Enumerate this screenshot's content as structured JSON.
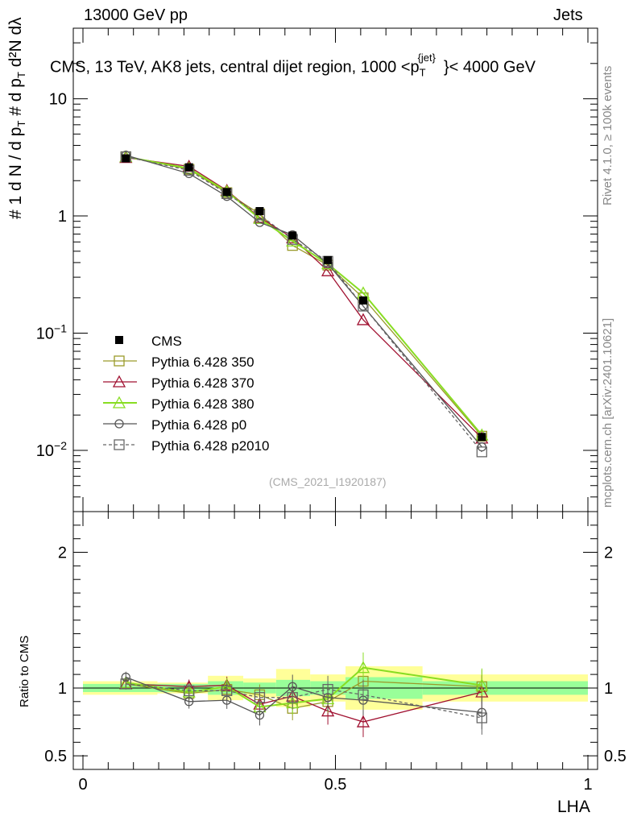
{
  "header": {
    "left": "13000 GeV pp",
    "right": "Jets",
    "title_main": "CMS, 13 TeV, AK8 jets, central dijet region, 1000 <",
    "title_var": "p",
    "title_sup": "{jet}",
    "title_sub": "T",
    "title_end": "}< 4000 GeV"
  },
  "side_labels": {
    "rivet": "Rivet 4.1.0, ≥ 100k events",
    "mcplots": "mcplots.cern.ch [arXiv:2401.10621]"
  },
  "watermark": "(CMS_2021_I1920187)",
  "y_axis_label": {
    "hash": "#",
    "one": "1",
    "dN": "d N / d p",
    "hash2": "#",
    "dp": "d p",
    "d2N": "d²N",
    "dlambda": "dλ",
    "sub": "T"
  },
  "ratio_ylabel": "Ratio to CMS",
  "xlabel": "LHA",
  "main_ticks": {
    "y": [
      {
        "base": "10",
        "exp": "−2",
        "value": 0.01
      },
      {
        "base": "10",
        "exp": "−1",
        "value": 0.1
      },
      {
        "base": "1",
        "exp": "",
        "value": 1
      },
      {
        "base": "10",
        "exp": "",
        "value": 10
      }
    ]
  },
  "ratio_ticks": {
    "y": [
      "0.5",
      "1",
      "2"
    ],
    "y_values": [
      0.5,
      1,
      2
    ]
  },
  "x_ticks": {
    "labels": [
      "0",
      "0.5",
      "1"
    ],
    "values": [
      0,
      0.5,
      1
    ]
  },
  "chart_data": {
    "type": "line",
    "xlabel": "LHA",
    "ylabel": "1/N dN/dp_T dp_T dλ",
    "xlim": [
      0,
      1
    ],
    "ylim": [
      0.003,
      40
    ],
    "yscale": "log",
    "ratio_ylim": [
      0.4,
      2.3
    ],
    "legend_position": "middle-left",
    "x": [
      0.085,
      0.21,
      0.285,
      0.35,
      0.415,
      0.485,
      0.555,
      0.79
    ],
    "data": {
      "name": "CMS",
      "values": [
        3.1,
        2.6,
        1.6,
        1.1,
        0.68,
        0.42,
        0.19,
        0.013
      ],
      "ratio_band_yellow": [
        0.05,
        0.04,
        0.09,
        0.07,
        0.14,
        0.1,
        0.16,
        0.1
      ],
      "ratio_band_green": [
        0.03,
        0.03,
        0.05,
        0.04,
        0.06,
        0.05,
        0.08,
        0.05
      ]
    },
    "series": [
      {
        "name": "Pythia 6.428 350",
        "color": "#9a9a2a",
        "marker": "square",
        "dash": false,
        "values": [
          3.2,
          2.5,
          1.58,
          1.04,
          0.56,
          0.38,
          0.2,
          0.0132
        ],
        "ratio": [
          1.03,
          0.96,
          0.99,
          0.95,
          0.85,
          0.9,
          1.05,
          1.01
        ]
      },
      {
        "name": "Pythia 6.428 370",
        "color": "#a01030",
        "marker": "triangle",
        "dash": false,
        "values": [
          3.15,
          2.65,
          1.65,
          0.97,
          0.65,
          0.34,
          0.13,
          0.0127
        ],
        "ratio": [
          1.03,
          1.01,
          1.02,
          0.88,
          0.94,
          0.83,
          0.75,
          0.97
        ]
      },
      {
        "name": "Pythia 6.428 380",
        "color": "#88dd22",
        "marker": "triangle",
        "dash": false,
        "values": [
          3.2,
          2.55,
          1.62,
          0.95,
          0.61,
          0.39,
          0.22,
          0.0135
        ],
        "ratio": [
          1.04,
          0.97,
          1.01,
          0.86,
          0.89,
          0.92,
          1.15,
          1.02
        ]
      },
      {
        "name": "Pythia 6.428 p0",
        "color": "#555555",
        "marker": "circle",
        "dash": false,
        "values": [
          3.3,
          2.3,
          1.47,
          0.88,
          0.69,
          0.39,
          0.17,
          0.0107
        ],
        "ratio": [
          1.08,
          0.9,
          0.91,
          0.8,
          1.01,
          0.93,
          0.91,
          0.82
        ]
      },
      {
        "name": "Pythia 6.428 p2010",
        "color": "#666666",
        "marker": "square",
        "dash": true,
        "values": [
          3.2,
          2.45,
          1.55,
          1.02,
          0.63,
          0.41,
          0.17,
          0.0097
        ],
        "ratio": [
          1.03,
          0.98,
          0.98,
          0.93,
          0.93,
          0.99,
          0.95,
          0.78
        ]
      }
    ]
  }
}
